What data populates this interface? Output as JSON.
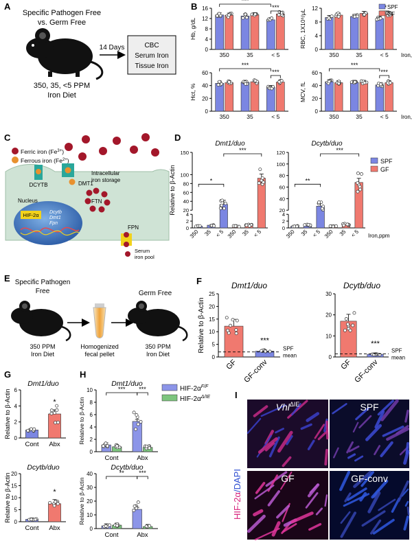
{
  "panels": {
    "A": {
      "letter": "A",
      "header_line1": "Specific Pathogen Free",
      "header_line2": "vs. Germ Free",
      "arrow_label": "14 Days",
      "box_lines": [
        "CBC",
        "Serum Iron",
        "Tissue Iron"
      ],
      "diet_line1": "350, 35, <5 PPM",
      "diet_line2": "Iron Diet"
    },
    "B": {
      "letter": "B"
    },
    "C": {
      "letter": "C",
      "legend_ferric": "Ferric iron (Fe",
      "legend_ferric_sup": "3+",
      "legend_ferrous": "Ferrous iron (Fe",
      "legend_ferrous_sup": "2+",
      "legend_close": ")",
      "dcytb": "DCYTB",
      "dmt1": "DMT1",
      "intracellular_line1": "Intracellular",
      "intracellular_line2": "iron storage",
      "ftn": "FTN",
      "nucleus": "Nucleus",
      "hif": "HIF-2α",
      "genes": [
        "Dcytb",
        "Dmt1",
        "Fpn"
      ],
      "fpn": "FPN",
      "serum_line1": "Serum",
      "serum_line2": "iron pool",
      "colors": {
        "ferric": "#a3172a",
        "ferrous": "#e8912f",
        "cell": "#cfe3d5",
        "nucleus": "#2f6fb5",
        "transporter": "#2aa79b",
        "fpn": "#f2d21b"
      }
    },
    "D": {
      "letter": "D"
    },
    "E": {
      "letter": "E",
      "left_line1": "Specific Pathogen",
      "left_line2": "Free",
      "right_title": "Germ Free",
      "left_diet1": "350 PPM",
      "left_diet2": "Iron Diet",
      "middle_line1": "Homogenized",
      "middle_line2": "fecal pellet",
      "right_diet1": "350 PPM",
      "right_diet2": "Iron Diet"
    },
    "F": {
      "letter": "F",
      "ylabel": "Relative to β-Actin",
      "spf_line1": "SPF",
      "spf_line2": "mean"
    },
    "G": {
      "letter": "G"
    },
    "H": {
      "letter": "H"
    },
    "I": {
      "letter": "I",
      "side_label_red": "HIF-2α",
      "side_label_blue": "/DAPI",
      "tiles": [
        {
          "label_main": "Vhl",
          "label_sup": "ΔIE"
        },
        {
          "label_main": "SPF",
          "label_sup": ""
        },
        {
          "label_main": "GF",
          "label_sup": ""
        },
        {
          "label_main": "GF-conv",
          "label_sup": ""
        }
      ]
    }
  },
  "colors": {
    "spf": "#7b86e2",
    "gf": "#f0796f",
    "hif_ff": "#8c95e8",
    "hif_die": "#7dc57e",
    "micro_red": "#d61f7a",
    "micro_blue": "#2b4bd0"
  },
  "chart_data": [
    {
      "id": "B1",
      "type": "bar",
      "ylabel": "Hb, g/dL",
      "ylim": [
        0,
        16
      ],
      "yticks": [
        0,
        4,
        8,
        12,
        16
      ],
      "categories": [
        "350",
        "35",
        "< 5"
      ],
      "xlabel": "",
      "series": [
        {
          "name": "SPF",
          "values": [
            13.4,
            13.0,
            11.5
          ]
        },
        {
          "name": "GF",
          "values": [
            13.3,
            13.5,
            13.8
          ]
        }
      ],
      "legend": [
        "SPF",
        "GF"
      ],
      "sig": [
        {
          "label": "***",
          "from": [
            0,
            0
          ],
          "to": [
            2,
            0
          ]
        },
        {
          "label": "***",
          "from": [
            2,
            0
          ],
          "to": [
            2,
            1
          ]
        }
      ]
    },
    {
      "id": "B2",
      "type": "bar",
      "ylabel": "RBC, 1X10⁶/μL",
      "ylim": [
        0,
        12
      ],
      "yticks": [
        0,
        4,
        8,
        12
      ],
      "categories": [
        "350",
        "35",
        "< 5"
      ],
      "xlabel": "Iron, ppm",
      "series": [
        {
          "name": "SPF",
          "values": [
            9.3,
            9.6,
            9.0
          ]
        },
        {
          "name": "GF",
          "values": [
            10.0,
            10.5,
            10.2
          ]
        }
      ],
      "sig": [
        {
          "label": "**",
          "from": [
            2,
            0
          ],
          "to": [
            2,
            1
          ]
        }
      ]
    },
    {
      "id": "B3",
      "type": "bar",
      "ylabel": "Hct, %",
      "ylim": [
        0,
        60
      ],
      "yticks": [
        0,
        20,
        40,
        60
      ],
      "categories": [
        "350",
        "35",
        "< 5"
      ],
      "xlabel": "",
      "series": [
        {
          "name": "SPF",
          "values": [
            43.5,
            45.0,
            37.0
          ]
        },
        {
          "name": "GF",
          "values": [
            44.5,
            46.0,
            45.5
          ]
        }
      ],
      "sig": [
        {
          "label": "***",
          "from": [
            0,
            0
          ],
          "to": [
            2,
            0
          ]
        },
        {
          "label": "***",
          "from": [
            2,
            0
          ],
          "to": [
            2,
            1
          ]
        }
      ]
    },
    {
      "id": "B4",
      "type": "bar",
      "ylabel": "MCV, fL",
      "ylim": [
        0,
        60
      ],
      "yticks": [
        0,
        20,
        40,
        60
      ],
      "categories": [
        "350",
        "35",
        "< 5"
      ],
      "xlabel": "Iron, ppm",
      "series": [
        {
          "name": "SPF",
          "values": [
            46.0,
            45.0,
            41.0
          ]
        },
        {
          "name": "GF",
          "values": [
            44.5,
            45.0,
            44.5
          ]
        }
      ],
      "sig": [
        {
          "label": "***",
          "from": [
            0,
            0
          ],
          "to": [
            2,
            0
          ]
        },
        {
          "label": "***",
          "from": [
            2,
            0
          ],
          "to": [
            2,
            1
          ]
        }
      ]
    },
    {
      "id": "D1",
      "type": "bar",
      "title": "Dmt1/duo",
      "ylabel": "Relative to β-Actin",
      "ylim": [
        0,
        150
      ],
      "ytick_labels": [
        "0",
        "2",
        "4",
        "20",
        "40",
        "60",
        "80",
        "100",
        "150"
      ],
      "axis_break": true,
      "categories": [
        "350",
        "35",
        "< 5",
        "350",
        "35",
        "< 5"
      ],
      "groups": [
        "SPF",
        "SPF",
        "SPF",
        "GF",
        "GF",
        "GF"
      ],
      "values": [
        0.5,
        0.8,
        33,
        0.5,
        0.8,
        92
      ],
      "sig": [
        {
          "label": "*",
          "from": 0,
          "to": 2
        },
        {
          "label": "***",
          "from": 2,
          "to": 5
        }
      ]
    },
    {
      "id": "D2",
      "type": "bar",
      "title": "Dcytb/duo",
      "ylim": [
        0,
        120
      ],
      "ytick_labels": [
        "0",
        "2",
        "4",
        "20",
        "40",
        "60",
        "80",
        "100",
        "120"
      ],
      "axis_break": true,
      "categories": [
        "350",
        "35",
        "< 5",
        "350",
        "35",
        "< 5"
      ],
      "groups": [
        "SPF",
        "SPF",
        "SPF",
        "GF",
        "GF",
        "GF"
      ],
      "values": [
        0.5,
        0.8,
        27,
        0.5,
        1.0,
        68
      ],
      "sig": [
        {
          "label": "**",
          "from": 0,
          "to": 2
        },
        {
          "label": "***",
          "from": 2,
          "to": 5
        }
      ],
      "xlabel": "Iron,ppm",
      "legend": [
        "SPF",
        "GF"
      ]
    },
    {
      "id": "F1",
      "type": "bar",
      "title": "Dmt1/duo",
      "ylabel": "Relative to β-Actin",
      "ylim": [
        0,
        25
      ],
      "yticks": [
        0,
        5,
        10,
        15,
        20,
        25
      ],
      "categories": [
        "GF",
        "GF-conv"
      ],
      "values": [
        12.2,
        2.3
      ],
      "spf_mean": 2.0,
      "sig": [
        {
          "label": "***",
          "over": 1
        }
      ]
    },
    {
      "id": "F2",
      "type": "bar",
      "title": "Dcytb/duo",
      "ylim": [
        0,
        30
      ],
      "yticks": [
        0,
        10,
        20,
        30
      ],
      "categories": [
        "GF",
        "GF-conv"
      ],
      "values": [
        17.0,
        1.3
      ],
      "spf_mean": 1.5,
      "sig": [
        {
          "label": "***",
          "over": 1
        }
      ]
    },
    {
      "id": "G1",
      "type": "bar",
      "title": "Dmt1/duo",
      "ylabel": "Relative to β-Actin",
      "ylim": [
        0,
        6
      ],
      "yticks": [
        0,
        2,
        4,
        6
      ],
      "categories": [
        "Cont",
        "Abx"
      ],
      "values": [
        1.0,
        3.0
      ],
      "sig": [
        {
          "label": "*",
          "over": 1
        }
      ]
    },
    {
      "id": "G2",
      "type": "bar",
      "title": "Dcytb/duo",
      "ylabel": "Relative to β-Actin",
      "ylim": [
        0,
        20
      ],
      "yticks": [
        0,
        5,
        10,
        15,
        20
      ],
      "categories": [
        "Cont",
        "Abx"
      ],
      "values": [
        1.0,
        7.5
      ],
      "sig": [
        {
          "label": "*",
          "over": 1
        }
      ]
    },
    {
      "id": "H1",
      "type": "bar",
      "title": "Dmt1/duo",
      "ylabel": "Relative to β-Actin",
      "ylim": [
        0,
        10
      ],
      "yticks": [
        0,
        2,
        4,
        6,
        8,
        10
      ],
      "categories": [
        "Cont",
        "Abx"
      ],
      "series": [
        {
          "name": "HIF-2αF/F",
          "values": [
            1.1,
            4.9
          ]
        },
        {
          "name": "HIF-2αΔIE",
          "values": [
            0.8,
            0.7
          ]
        }
      ],
      "legend": [
        {
          "main": "HIF-2α",
          "sup": "F/F"
        },
        {
          "main": "HIF-2α",
          "sup": "Δ/IE"
        }
      ],
      "sig": [
        {
          "label": "***",
          "from": [
            0,
            0
          ],
          "to": [
            1,
            0
          ]
        },
        {
          "label": "***",
          "from": [
            1,
            0
          ],
          "to": [
            1,
            1
          ]
        }
      ]
    },
    {
      "id": "H2",
      "type": "bar",
      "title": "Dcytb/duo",
      "ylabel": "Relative to β-Actin",
      "ylim": [
        0,
        40
      ],
      "yticks": [
        0,
        10,
        20,
        30,
        40
      ],
      "categories": [
        "Cont",
        "Abx"
      ],
      "series": [
        {
          "name": "HIF-2αF/F",
          "values": [
            2.0,
            14.0
          ]
        },
        {
          "name": "HIF-2αΔIE",
          "values": [
            2.5,
            1.5
          ]
        }
      ],
      "sig": [
        {
          "label": "**",
          "from": [
            0,
            0
          ],
          "to": [
            1,
            0
          ]
        },
        {
          "label": "***",
          "from": [
            1,
            0
          ],
          "to": [
            1,
            1
          ]
        }
      ]
    }
  ]
}
